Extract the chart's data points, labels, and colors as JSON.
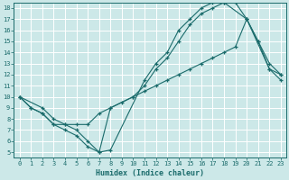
{
  "xlabel": "Humidex (Indice chaleur)",
  "background_color": "#cce8e8",
  "line_color": "#1a6b6b",
  "grid_color": "#ffffff",
  "xlim": [
    -0.5,
    23.5
  ],
  "ylim": [
    4.5,
    18.5
  ],
  "xticks": [
    0,
    1,
    2,
    3,
    4,
    5,
    6,
    7,
    8,
    9,
    10,
    11,
    12,
    13,
    14,
    15,
    16,
    17,
    18,
    19,
    20,
    21,
    22,
    23
  ],
  "yticks": [
    5,
    6,
    7,
    8,
    9,
    10,
    11,
    12,
    13,
    14,
    15,
    16,
    17,
    18
  ],
  "line1_x": [
    0,
    1,
    2,
    3,
    4,
    5,
    6,
    7,
    8,
    11,
    12,
    13,
    14,
    15,
    16,
    17,
    18,
    20,
    21,
    22,
    23
  ],
  "line1_y": [
    10,
    9,
    8.5,
    7.5,
    7,
    6.5,
    5.5,
    5,
    5.2,
    11.5,
    13,
    14,
    16,
    17,
    18,
    18.5,
    18.5,
    17,
    15,
    12.5,
    11.5
  ],
  "line2_x": [
    0,
    1,
    2,
    3,
    4,
    5,
    6,
    7,
    8,
    10,
    11,
    12,
    13,
    14,
    15,
    16,
    17,
    18,
    19,
    20,
    21,
    22,
    23
  ],
  "line2_y": [
    10,
    9,
    8.5,
    7.5,
    7.5,
    7,
    6,
    5,
    9,
    10,
    11,
    12.5,
    13.5,
    15,
    16.5,
    17.5,
    18,
    18.5,
    18.5,
    17,
    15,
    13,
    12
  ],
  "line3_x": [
    0,
    2,
    3,
    4,
    5,
    6,
    7,
    8,
    9,
    10,
    11,
    12,
    13,
    14,
    15,
    16,
    17,
    18,
    19,
    20,
    22,
    23
  ],
  "line3_y": [
    10,
    9,
    8,
    7.5,
    7.5,
    7.5,
    8.5,
    9,
    9.5,
    10,
    10.5,
    11,
    11.5,
    12,
    12.5,
    13,
    13.5,
    14,
    14.5,
    17,
    12.5,
    12
  ]
}
